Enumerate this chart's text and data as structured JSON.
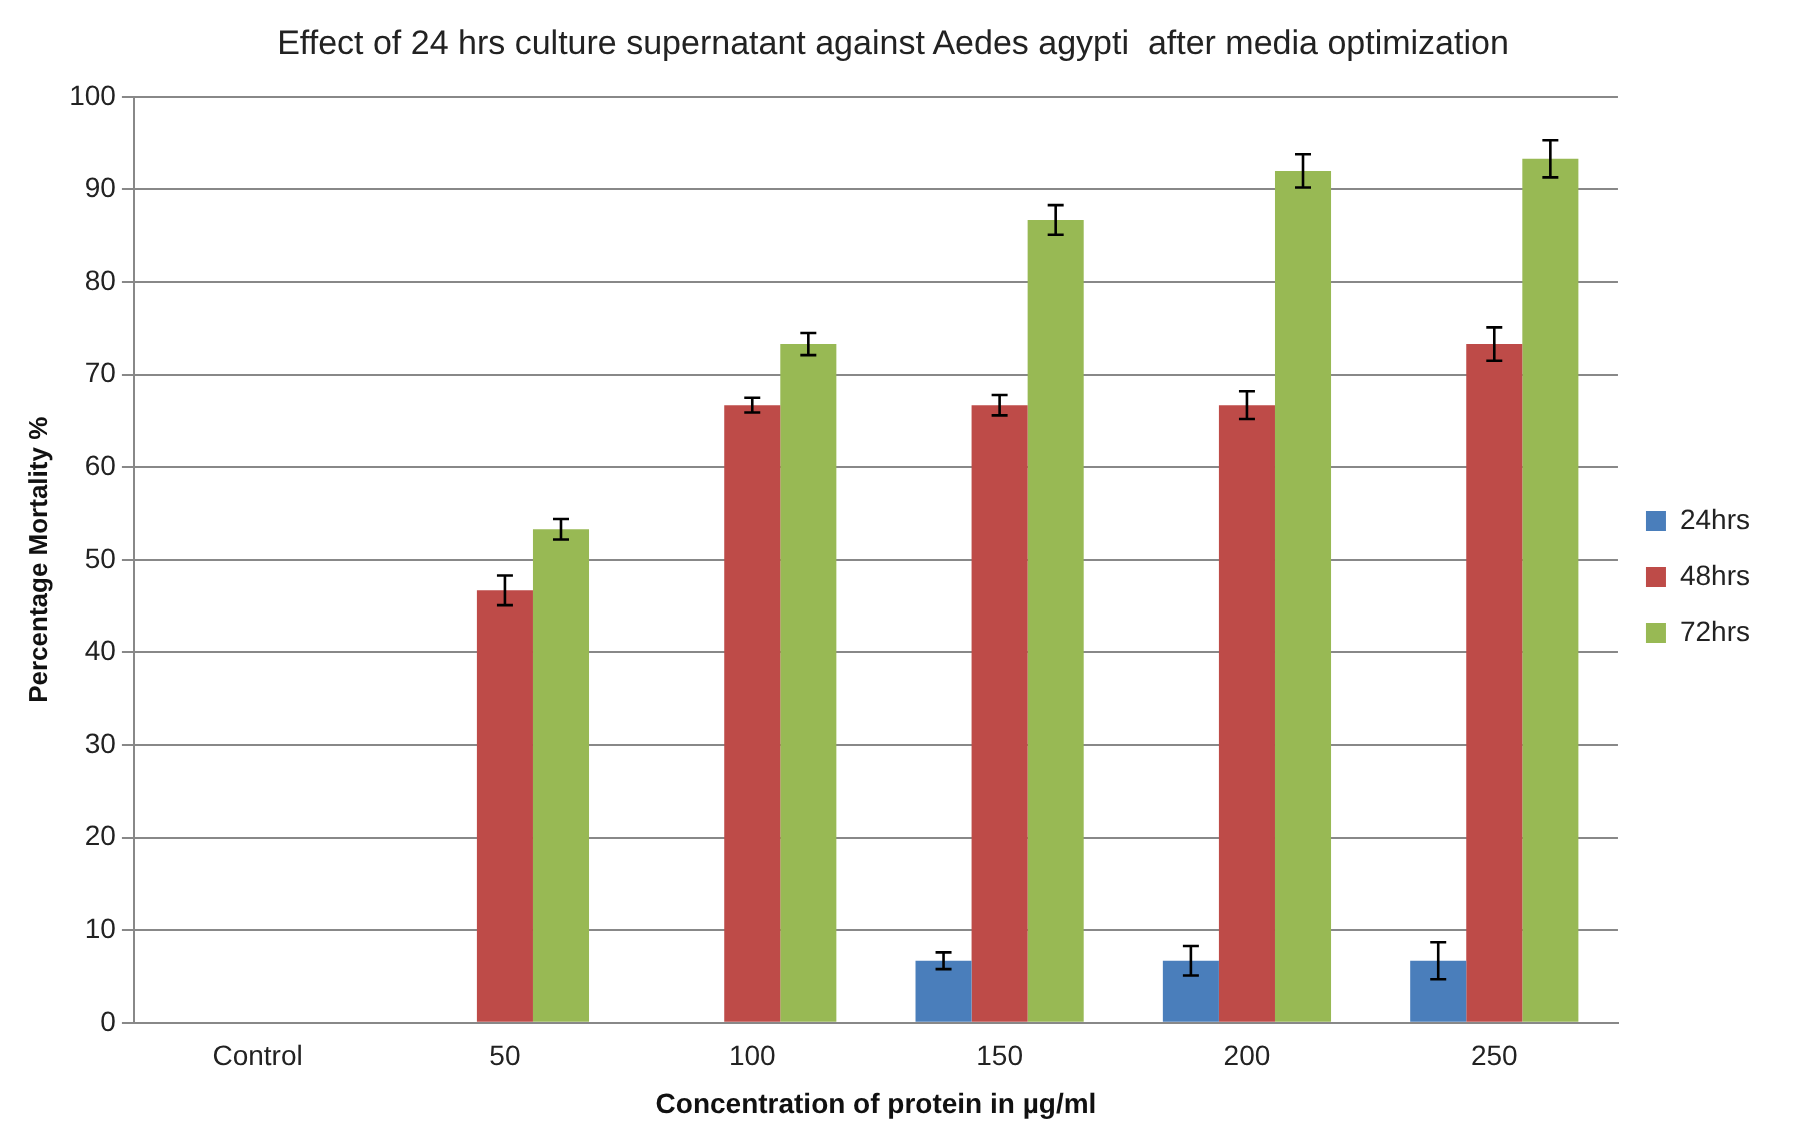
{
  "chart_data": {
    "type": "bar",
    "title": "Effect of 24 hrs culture supernatant against Aedes agypti  after media optimization",
    "xlabel": "Concentration of protein in µg/ml",
    "ylabel": "Percentage Mortality %",
    "categories": [
      "Control",
      "50",
      "100",
      "150",
      "200",
      "250"
    ],
    "series": [
      {
        "name": "24hrs",
        "color": "#4a7ebb",
        "values": [
          0,
          0,
          0,
          6.7,
          6.7,
          6.7
        ],
        "errors": [
          null,
          null,
          null,
          0.9,
          1.6,
          2
        ]
      },
      {
        "name": "48hrs",
        "color": "#be4b48",
        "values": [
          0,
          46.7,
          66.7,
          66.7,
          66.7,
          73.3
        ],
        "errors": [
          null,
          1.6,
          0.8,
          1.1,
          1.5,
          1.8
        ]
      },
      {
        "name": "72hrs",
        "color": "#98b954",
        "values": [
          0,
          53.3,
          73.3,
          86.7,
          92,
          93.3
        ],
        "errors": [
          null,
          1.1,
          1.2,
          1.6,
          1.8,
          2
        ]
      }
    ],
    "ylim": [
      0,
      100
    ],
    "yticks": [
      0,
      10,
      20,
      30,
      40,
      50,
      60,
      70,
      80,
      90,
      100
    ],
    "grid": "y",
    "legend": "right"
  }
}
